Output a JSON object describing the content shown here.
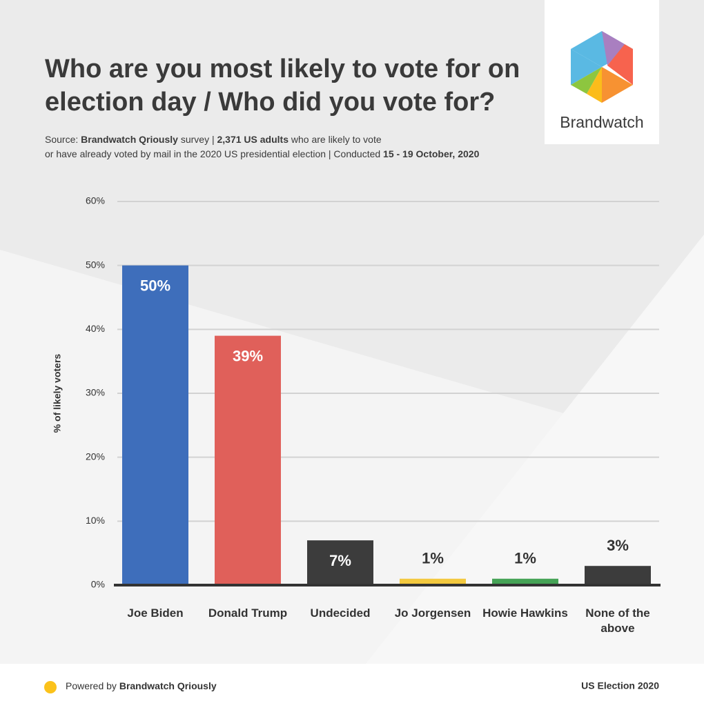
{
  "chart_data": {
    "type": "bar",
    "title": "Who are you most likely to vote for on election day / Who did you vote for?",
    "subtitle_lines": [
      [
        {
          "text": "Source: ",
          "bold": false
        },
        {
          "text": "Brandwatch Qriously",
          "bold": true
        },
        {
          "text": " survey | ",
          "bold": false
        },
        {
          "text": "2,371 US adults",
          "bold": true
        },
        {
          "text": " who are likely to vote",
          "bold": false
        }
      ],
      [
        {
          "text": "or have already voted by mail in the 2020 US presidential election | Conducted ",
          "bold": false
        },
        {
          "text": "15 - 19 October, 2020",
          "bold": true
        }
      ]
    ],
    "ylabel": "% of likely voters",
    "categories": [
      "Joe Biden",
      "Donald Trump",
      "Undecided",
      "Jo Jorgensen",
      "Howie Hawkins",
      "None of the above"
    ],
    "values": [
      50,
      39,
      7,
      1,
      1,
      3
    ],
    "value_labels": [
      "50%",
      "39%",
      "7%",
      "1%",
      "1%",
      "3%"
    ],
    "colors": [
      "#3e6ebb",
      "#e0605a",
      "#3c3c3c",
      "#f3c93f",
      "#45a356",
      "#3c3c3c"
    ],
    "ylim": [
      0,
      60
    ],
    "yticks": [
      {
        "value": 0,
        "label": "0%"
      },
      {
        "value": 10,
        "label": "10%"
      },
      {
        "value": 20,
        "label": "20%"
      },
      {
        "value": 30,
        "label": "30%"
      },
      {
        "value": 40,
        "label": "40%"
      },
      {
        "value": 50,
        "label": "50%"
      },
      {
        "value": 60,
        "label": "60%"
      }
    ],
    "grid": true,
    "logo_text": "Brandwatch",
    "footer_left": [
      {
        "text": "Powered by ",
        "bold": false
      },
      {
        "text": "Brandwatch Qriously",
        "bold": true
      }
    ],
    "footer_right": "US Election 2020"
  }
}
